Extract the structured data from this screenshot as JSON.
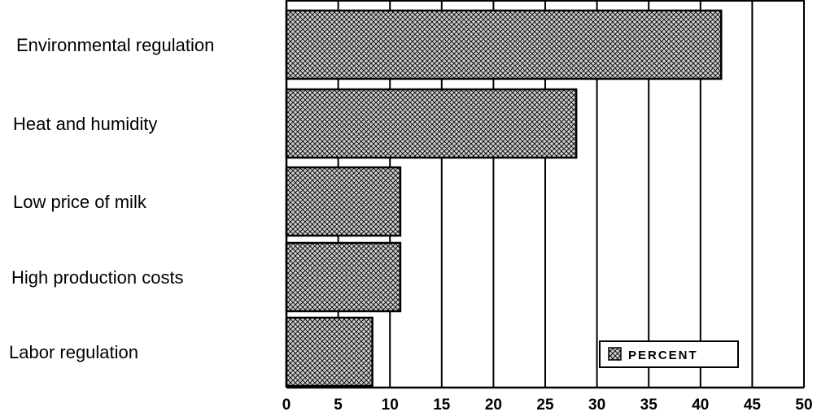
{
  "chart_data": {
    "type": "bar",
    "orientation": "horizontal",
    "categories": [
      "Environmental regulation",
      "Heat and humidity",
      "Low price of milk",
      "High production costs",
      "Labor regulation"
    ],
    "series": [
      {
        "name": "PERCENT",
        "values": [
          42,
          28,
          11,
          11,
          8.3
        ]
      }
    ],
    "xlim": [
      0,
      50
    ],
    "xticks": [
      "0",
      "5",
      "10",
      "15",
      "20",
      "25",
      "30",
      "35",
      "40",
      "45",
      "50"
    ],
    "grid": "vertical",
    "legend_position": "bottom-right",
    "colors": {
      "bar_fill": "#c8c8c8",
      "bar_pattern": "#000000",
      "grid": "#000000"
    }
  }
}
